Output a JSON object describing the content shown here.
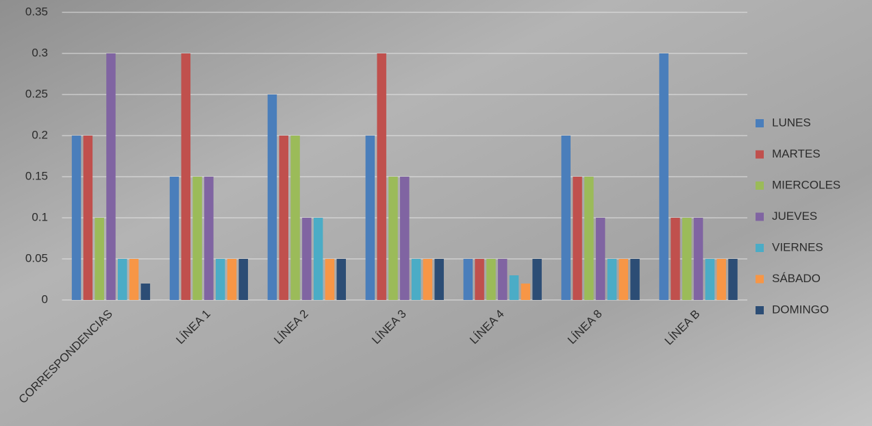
{
  "chart_data": {
    "type": "bar",
    "categories": [
      "CORRESPONDENCIAS",
      "LÍNEA 1",
      "LÍNEA 2",
      "LÍNEA 3",
      "LÍNEA 4",
      "LÍNEA 8",
      "LÍNEA B"
    ],
    "series": [
      {
        "name": "LUNES",
        "color": "#4a7ebb",
        "values": [
          0.2,
          0.15,
          0.25,
          0.2,
          0.05,
          0.2,
          0.3
        ]
      },
      {
        "name": "MARTES",
        "color": "#c0504d",
        "values": [
          0.2,
          0.3,
          0.2,
          0.3,
          0.05,
          0.15,
          0.1
        ]
      },
      {
        "name": "MIERCOLES",
        "color": "#9bbb59",
        "values": [
          0.1,
          0.15,
          0.2,
          0.15,
          0.05,
          0.15,
          0.1
        ]
      },
      {
        "name": "JUEVES",
        "color": "#8064a2",
        "values": [
          0.3,
          0.15,
          0.1,
          0.15,
          0.05,
          0.1,
          0.1
        ]
      },
      {
        "name": "VIERNES",
        "color": "#4bacc6",
        "values": [
          0.05,
          0.05,
          0.1,
          0.05,
          0.03,
          0.05,
          0.05
        ]
      },
      {
        "name": "SÁBADO",
        "color": "#f79646",
        "values": [
          0.05,
          0.05,
          0.05,
          0.05,
          0.02,
          0.05,
          0.05
        ]
      },
      {
        "name": "DOMINGO",
        "color": "#2c4d75",
        "values": [
          0.02,
          0.05,
          0.05,
          0.05,
          0.05,
          0.05,
          0.05
        ]
      }
    ],
    "ylim": [
      0,
      0.35
    ],
    "yticks": [
      0,
      0.05,
      0.1,
      0.15,
      0.2,
      0.25,
      0.3,
      0.35
    ],
    "grid": true,
    "legend": "right"
  }
}
